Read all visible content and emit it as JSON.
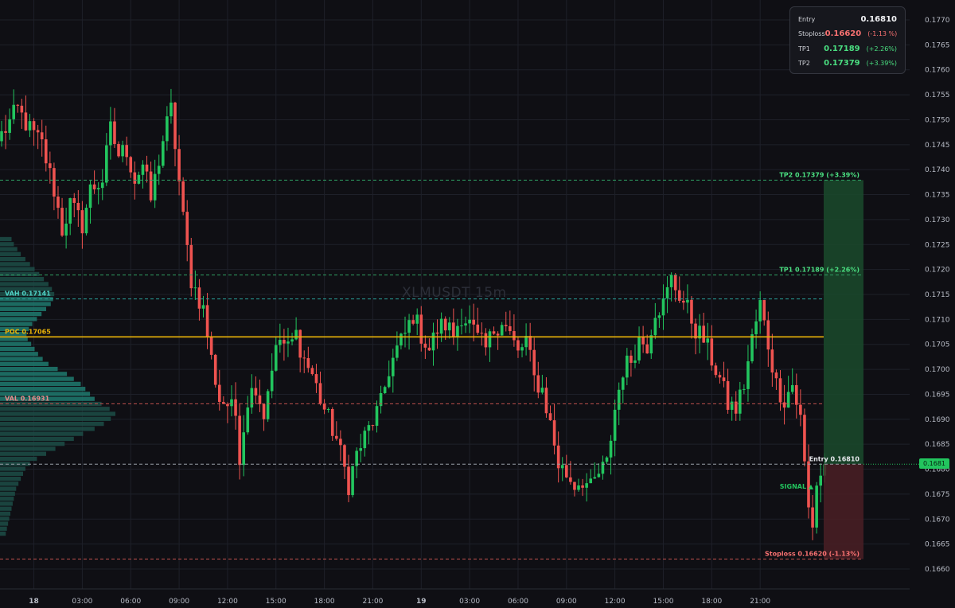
{
  "chart_data": {
    "type": "candlestick",
    "title": "XLMUSDT 15m",
    "ylim": [
      0.16575,
      0.17765
    ],
    "y_ticks": [
      "0.1660",
      "0.1665",
      "0.1670",
      "0.1675",
      "0.1680",
      "0.1685",
      "0.1690",
      "0.1695",
      "0.1700",
      "0.1705",
      "0.1710",
      "0.1715",
      "0.1720",
      "0.1725",
      "0.1730",
      "0.1735",
      "0.1740",
      "0.1745",
      "0.1750",
      "0.1755",
      "0.1760",
      "0.1765",
      "0.1770"
    ],
    "x_ticks": [
      {
        "label": "18",
        "bold": true,
        "bar": 8
      },
      {
        "label": "03:00",
        "bar": 20
      },
      {
        "label": "06:00",
        "bar": 32
      },
      {
        "label": "09:00",
        "bar": 44
      },
      {
        "label": "12:00",
        "bar": 56
      },
      {
        "label": "15:00",
        "bar": 68
      },
      {
        "label": "18:00",
        "bar": 80
      },
      {
        "label": "21:00",
        "bar": 92
      },
      {
        "label": "19",
        "bold": true,
        "bar": 104
      },
      {
        "label": "03:00",
        "bar": 116
      },
      {
        "label": "06:00",
        "bar": 128
      },
      {
        "label": "09:00",
        "bar": 140
      },
      {
        "label": "12:00",
        "bar": 152
      },
      {
        "label": "15:00",
        "bar": 164
      },
      {
        "label": "18:00",
        "bar": 176
      },
      {
        "label": "21:00",
        "bar": 188
      }
    ],
    "anchor_points": [
      [
        0,
        0.1747
      ],
      [
        4,
        0.1752
      ],
      [
        7,
        0.1748
      ],
      [
        10,
        0.1745
      ],
      [
        13,
        0.1736
      ],
      [
        15,
        0.1728
      ],
      [
        17,
        0.1733
      ],
      [
        20,
        0.1729
      ],
      [
        22,
        0.1736
      ],
      [
        25,
        0.1738
      ],
      [
        27,
        0.1748
      ],
      [
        29,
        0.1743
      ],
      [
        31,
        0.1744
      ],
      [
        33,
        0.1738
      ],
      [
        35,
        0.1741
      ],
      [
        37,
        0.1734
      ],
      [
        40,
        0.1746
      ],
      [
        42,
        0.1752
      ],
      [
        43,
        0.1745
      ],
      [
        45,
        0.173
      ],
      [
        47,
        0.1718
      ],
      [
        50,
        0.1712
      ],
      [
        52,
        0.1702
      ],
      [
        54,
        0.1694
      ],
      [
        56,
        0.1693
      ],
      [
        58,
        0.1691
      ],
      [
        59,
        0.1683
      ],
      [
        61,
        0.1694
      ],
      [
        63,
        0.1697
      ],
      [
        65,
        0.1691
      ],
      [
        67,
        0.1701
      ],
      [
        69,
        0.1706
      ],
      [
        71,
        0.1704
      ],
      [
        73,
        0.1707
      ],
      [
        75,
        0.1702
      ],
      [
        77,
        0.1699
      ],
      [
        79,
        0.1694
      ],
      [
        81,
        0.169
      ],
      [
        83,
        0.1686
      ],
      [
        85,
        0.168
      ],
      [
        86,
        0.1677
      ],
      [
        88,
        0.1683
      ],
      [
        91,
        0.1688
      ],
      [
        94,
        0.1693
      ],
      [
        96,
        0.17
      ],
      [
        98,
        0.1704
      ],
      [
        100,
        0.1707
      ],
      [
        102,
        0.1711
      ],
      [
        104,
        0.1707
      ],
      [
        106,
        0.1704
      ],
      [
        108,
        0.1708
      ],
      [
        110,
        0.1709
      ],
      [
        112,
        0.1707
      ],
      [
        114,
        0.1711
      ],
      [
        116,
        0.1709
      ],
      [
        118,
        0.1706
      ],
      [
        120,
        0.1704
      ],
      [
        122,
        0.1708
      ],
      [
        124,
        0.171
      ],
      [
        126,
        0.1707
      ],
      [
        128,
        0.1703
      ],
      [
        130,
        0.1706
      ],
      [
        132,
        0.1698
      ],
      [
        134,
        0.1696
      ],
      [
        136,
        0.1689
      ],
      [
        138,
        0.1681
      ],
      [
        140,
        0.1679
      ],
      [
        142,
        0.1677
      ],
      [
        144,
        0.1678
      ],
      [
        146,
        0.1676
      ],
      [
        148,
        0.1679
      ],
      [
        150,
        0.1681
      ],
      [
        152,
        0.1692
      ],
      [
        154,
        0.17
      ],
      [
        156,
        0.1702
      ],
      [
        158,
        0.1706
      ],
      [
        160,
        0.1705
      ],
      [
        162,
        0.1712
      ],
      [
        164,
        0.1713
      ],
      [
        166,
        0.1718
      ],
      [
        168,
        0.1715
      ],
      [
        170,
        0.1712
      ],
      [
        172,
        0.1708
      ],
      [
        174,
        0.1706
      ],
      [
        176,
        0.1702
      ],
      [
        178,
        0.1698
      ],
      [
        180,
        0.1693
      ],
      [
        182,
        0.1692
      ],
      [
        184,
        0.1697
      ],
      [
        186,
        0.1706
      ],
      [
        188,
        0.1713
      ],
      [
        190,
        0.1705
      ],
      [
        192,
        0.1697
      ],
      [
        194,
        0.1694
      ],
      [
        196,
        0.1697
      ],
      [
        198,
        0.169
      ],
      [
        200,
        0.1672
      ],
      [
        201,
        0.1669
      ],
      [
        202,
        0.1677
      ],
      [
        204,
        0.1681
      ]
    ],
    "volume_profile": [
      0.1,
      0.12,
      0.15,
      0.18,
      0.22,
      0.26,
      0.3,
      0.34,
      0.38,
      0.42,
      0.45,
      0.47,
      0.46,
      0.44,
      0.4,
      0.36,
      0.32,
      0.28,
      0.25,
      0.23,
      0.24,
      0.27,
      0.3,
      0.33,
      0.37,
      0.42,
      0.5,
      0.58,
      0.64,
      0.7,
      0.74,
      0.78,
      0.82,
      0.88,
      0.95,
      1.0,
      0.96,
      0.9,
      0.82,
      0.72,
      0.64,
      0.56,
      0.48,
      0.4,
      0.32,
      0.26,
      0.22,
      0.2,
      0.18,
      0.16,
      0.14,
      0.13,
      0.12,
      0.11,
      0.1,
      0.09,
      0.08,
      0.07,
      0.06,
      0.05
    ],
    "volume_profile_range": [
      0.16665,
      0.17265
    ],
    "levels": {
      "vah": {
        "label": "VAH",
        "value": "0.17141",
        "color": "#2aa198"
      },
      "poc": {
        "label": "POC",
        "value": "0.17065",
        "color": "#eab308"
      },
      "val": {
        "label": "VAL",
        "value": "0.16931",
        "color": "#e06c6c"
      },
      "tp2": {
        "label": "TP2 0.17379 (+3.39%)",
        "value": 0.17379,
        "color": "#4ade80"
      },
      "tp1": {
        "label": "TP1 0.17189 (+2.26%)",
        "value": 0.17189,
        "color": "#4ade80"
      },
      "entry": {
        "label": "Entry 0.16810",
        "value": 0.1681,
        "color": "#e5e7eb"
      },
      "stoploss": {
        "label": "Stoploss 0.16620 (-1.13%)",
        "value": 0.1662,
        "color": "#f87171"
      }
    },
    "signal_label": "SIGNAL ▲",
    "last_price": "0.1681",
    "colors": {
      "up": "#22c55e",
      "down": "#ef5350",
      "grid": "#1e2029",
      "background": "#0f0f14"
    }
  },
  "info_panel": {
    "rows": [
      {
        "label": "Entry",
        "value": "0.16810",
        "pct": "",
        "color": "#f1f2f5"
      },
      {
        "label": "Stoploss",
        "value": "0.16620",
        "pct": "(-1.13 %)",
        "color": "#f87171"
      },
      {
        "label": "TP1",
        "value": "0.17189",
        "pct": "(+2.26%)",
        "color": "#4ade80"
      },
      {
        "label": "TP2",
        "value": "0.17379",
        "pct": "(+3.39%)",
        "color": "#4ade80"
      }
    ]
  },
  "watermark": "XLMUSDT 15m"
}
